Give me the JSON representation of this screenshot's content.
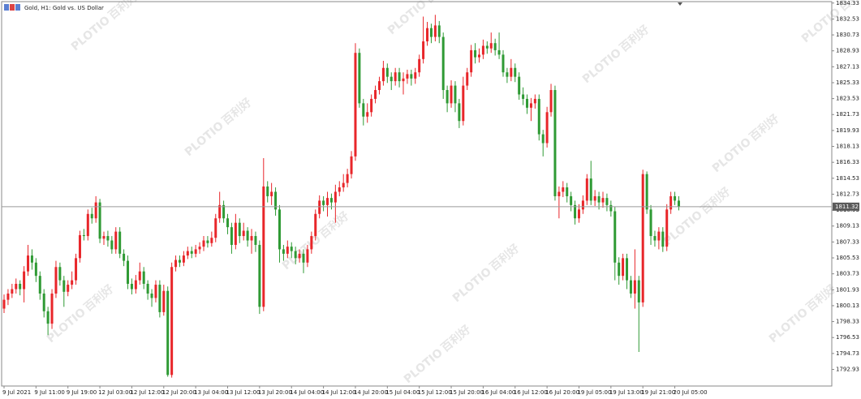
{
  "chart_data": {
    "type": "candlestick",
    "title": "Gold, H1: Gold vs. US Dollar",
    "watermark_brand": "PLOTIO",
    "watermark_name": "百利好",
    "up_color": "#e8262a",
    "down_color": "#2f9a34",
    "last_price": 1811.32,
    "ylim": [
      1791.05,
      1834.4
    ],
    "yticks": [
      1792.93,
      1794.73,
      1796.53,
      1798.33,
      1800.13,
      1801.93,
      1803.73,
      1805.53,
      1807.33,
      1809.13,
      1810.93,
      1812.73,
      1814.53,
      1816.33,
      1818.13,
      1819.93,
      1821.73,
      1823.53,
      1825.33,
      1827.13,
      1828.93,
      1830.73,
      1832.53,
      1834.33
    ],
    "categories": [
      "9 Jul 2021",
      null,
      null,
      null,
      null,
      null,
      null,
      null,
      "9 Jul 11:00",
      null,
      null,
      null,
      null,
      null,
      null,
      null,
      "9 Jul 19:00",
      null,
      null,
      null,
      null,
      null,
      null,
      null,
      "12 Jul 03:00",
      null,
      null,
      null,
      null,
      null,
      null,
      null,
      "12 Jul 12:00",
      null,
      null,
      null,
      null,
      null,
      null,
      null,
      "12 Jul 20:00",
      null,
      null,
      null,
      null,
      null,
      null,
      null,
      "13 Jul 04:00",
      null,
      null,
      null,
      null,
      null,
      null,
      null,
      "13 Jul 12:00",
      null,
      null,
      null,
      null,
      null,
      null,
      null,
      "13 Jul 20:00",
      null,
      null,
      null,
      null,
      null,
      null,
      null,
      "14 Jul 04:00",
      null,
      null,
      null,
      null,
      null,
      null,
      null,
      "14 Jul 12:00",
      null,
      null,
      null,
      null,
      null,
      null,
      null,
      "14 Jul 20:00",
      null,
      null,
      null,
      null,
      null,
      null,
      null,
      "15 Jul 04:00",
      null,
      null,
      null,
      null,
      null,
      null,
      null,
      "15 Jul 12:00",
      null,
      null,
      null,
      null,
      null,
      null,
      null,
      "15 Jul 20:00",
      null,
      null,
      null,
      null,
      null,
      null,
      null,
      "16 Jul 04:00",
      null,
      null,
      null,
      null,
      null,
      null,
      null,
      "16 Jul 12:00",
      null,
      null,
      null,
      null,
      null,
      null,
      null,
      "16 Jul 20:00",
      null,
      null,
      null,
      null,
      null,
      null,
      null,
      "19 Jul 05:00",
      null,
      null,
      null,
      null,
      null,
      null,
      null,
      "19 Jul 13:00",
      null,
      null,
      null,
      null,
      null,
      null,
      null,
      "19 Jul 21:00",
      null,
      null,
      null,
      null,
      null,
      null,
      null,
      "20 Jul 05:00",
      null
    ],
    "open": [
      1799.8,
      1800.8,
      1801.5,
      1802.0,
      1802.6,
      1802.0,
      1804.0,
      1805.8,
      1805.0,
      1803.5,
      1801.5,
      1799.5,
      1798.1,
      1801.5,
      1804.5,
      1803.0,
      1801.7,
      1802.5,
      1803.0,
      1805.5,
      1808.1,
      1808.0,
      1810.5,
      1810.0,
      1811.8,
      1807.7,
      1808.0,
      1807.5,
      1806.5,
      1808.5,
      1806.0,
      1805.2,
      1802.6,
      1802.0,
      1803.0,
      1804.0,
      1802.6,
      1801.5,
      1801.0,
      1802.5,
      1799.4,
      1801.8,
      1792.3,
      1804.5,
      1805.3,
      1805.0,
      1805.8,
      1806.3,
      1806.0,
      1806.5,
      1806.8,
      1807.5,
      1807.2,
      1807.8,
      1810.0,
      1811.5,
      1810.0,
      1809.0,
      1807.0,
      1809.5,
      1808.0,
      1808.6,
      1807.5,
      1808.0,
      1807.0,
      1800.0,
      1813.6,
      1812.5,
      1813.0,
      1811.0,
      1806.5,
      1806.0,
      1806.8,
      1806.3,
      1805.5,
      1806.0,
      1805.0,
      1806.5,
      1808.0,
      1810.5,
      1812.0,
      1811.5,
      1812.3,
      1811.8,
      1813.0,
      1813.5,
      1814.0,
      1815.0,
      1817.0,
      1828.7,
      1823.0,
      1821.5,
      1822.0,
      1823.5,
      1824.5,
      1825.5,
      1827.0,
      1826.0,
      1825.5,
      1826.5,
      1825.5,
      1825.8,
      1826.3,
      1825.8,
      1826.5,
      1828.0,
      1830.0,
      1831.5,
      1830.5,
      1831.8,
      1830.5,
      1824.5,
      1823.0,
      1825.0,
      1823.0,
      1821.0,
      1825.0,
      1826.5,
      1829.0,
      1828.2,
      1828.5,
      1829.5,
      1829.2,
      1829.8,
      1829.0,
      1828.5,
      1826.5,
      1826.0,
      1827.0,
      1826.0,
      1824.0,
      1823.5,
      1822.5,
      1823.0,
      1823.5,
      1819.5,
      1818.5,
      1822.0,
      1824.5,
      1812.5,
      1813.0,
      1813.5,
      1812.5,
      1811.5,
      1810.0,
      1811.0,
      1812.0,
      1814.5,
      1812.0,
      1812.5,
      1811.8,
      1812.3,
      1811.5,
      1810.8,
      1805.0,
      1803.5,
      1805.5,
      1803.0,
      1801.5,
      1803.0,
      1800.5,
      1815.0,
      1811.0,
      1808.0,
      1807.5,
      1808.5,
      1806.8,
      1811.0,
      1812.5,
      1812.0
    ],
    "high": [
      1801.4,
      1802.0,
      1802.6,
      1803.2,
      1803.0,
      1804.6,
      1807.0,
      1806.5,
      1805.5,
      1804.0,
      1802.0,
      1800.0,
      1802.0,
      1805.2,
      1805.0,
      1803.5,
      1803.0,
      1804.0,
      1806.0,
      1808.6,
      1808.8,
      1811.0,
      1811.2,
      1812.5,
      1812.2,
      1808.5,
      1808.6,
      1808.0,
      1809.0,
      1809.0,
      1806.5,
      1805.8,
      1803.2,
      1803.6,
      1805.0,
      1804.5,
      1803.0,
      1802.0,
      1803.0,
      1803.0,
      1802.5,
      1802.3,
      1805.0,
      1805.8,
      1805.8,
      1806.3,
      1806.8,
      1806.8,
      1807.0,
      1807.3,
      1808.0,
      1808.0,
      1808.5,
      1810.5,
      1813.0,
      1812.0,
      1810.5,
      1809.5,
      1810.5,
      1810.0,
      1809.5,
      1809.0,
      1808.8,
      1808.5,
      1807.5,
      1816.8,
      1814.2,
      1814.0,
      1813.5,
      1811.5,
      1807.0,
      1807.5,
      1807.3,
      1806.8,
      1806.5,
      1806.5,
      1807.0,
      1808.5,
      1811.0,
      1812.6,
      1812.5,
      1813.0,
      1812.8,
      1813.8,
      1814.2,
      1815.0,
      1815.6,
      1817.6,
      1829.8,
      1829.2,
      1823.5,
      1823.0,
      1824.0,
      1825.0,
      1826.0,
      1827.8,
      1827.5,
      1826.5,
      1827.0,
      1827.0,
      1826.5,
      1826.8,
      1826.8,
      1827.0,
      1828.5,
      1832.8,
      1832.2,
      1832.0,
      1833.0,
      1832.3,
      1831.0,
      1825.0,
      1825.6,
      1825.5,
      1823.5,
      1826.0,
      1827.0,
      1829.6,
      1829.8,
      1829.2,
      1830.2,
      1830.0,
      1831.0,
      1830.3,
      1831.0,
      1829.0,
      1827.0,
      1828.0,
      1827.5,
      1826.5,
      1824.8,
      1824.0,
      1823.6,
      1824.0,
      1824.0,
      1820.0,
      1822.6,
      1825.2,
      1825.0,
      1813.6,
      1814.2,
      1814.0,
      1813.0,
      1812.0,
      1811.6,
      1812.6,
      1815.0,
      1816.5,
      1813.2,
      1813.0,
      1813.0,
      1812.8,
      1812.0,
      1811.3,
      1805.6,
      1806.0,
      1806.0,
      1803.5,
      1806.5,
      1803.5,
      1815.5,
      1815.3,
      1811.5,
      1808.6,
      1809.0,
      1809.0,
      1811.6,
      1813.0,
      1813.0,
      1812.5
    ],
    "low": [
      1799.3,
      1800.2,
      1801.0,
      1801.5,
      1801.3,
      1800.5,
      1803.5,
      1804.2,
      1802.8,
      1800.8,
      1798.8,
      1796.8,
      1797.5,
      1801.0,
      1802.4,
      1800.0,
      1801.2,
      1802.0,
      1802.5,
      1805.0,
      1807.5,
      1807.5,
      1809.4,
      1809.5,
      1807.2,
      1807.0,
      1806.8,
      1806.0,
      1806.0,
      1805.5,
      1804.6,
      1802.0,
      1801.4,
      1801.5,
      1802.5,
      1802.0,
      1800.8,
      1800.0,
      1800.5,
      1798.8,
      1799.0,
      1792.1,
      1792.0,
      1804.0,
      1804.5,
      1804.6,
      1805.4,
      1805.5,
      1805.6,
      1806.0,
      1806.3,
      1806.7,
      1806.8,
      1807.3,
      1809.5,
      1809.5,
      1808.2,
      1806.0,
      1806.5,
      1807.2,
      1807.5,
      1806.8,
      1806.0,
      1806.2,
      1799.2,
      1799.5,
      1811.8,
      1811.5,
      1810.3,
      1805.0,
      1805.2,
      1805.5,
      1805.5,
      1804.8,
      1805.0,
      1803.8,
      1804.5,
      1806.0,
      1807.5,
      1810.0,
      1810.8,
      1810.2,
      1811.0,
      1809.5,
      1812.5,
      1813.0,
      1813.5,
      1814.5,
      1816.5,
      1822.5,
      1820.5,
      1820.8,
      1821.5,
      1823.0,
      1824.0,
      1825.0,
      1825.3,
      1824.5,
      1825.0,
      1824.8,
      1824.0,
      1825.2,
      1825.0,
      1825.2,
      1826.0,
      1827.5,
      1829.5,
      1829.8,
      1830.0,
      1829.8,
      1823.5,
      1822.0,
      1822.5,
      1822.0,
      1820.2,
      1820.5,
      1824.5,
      1826.0,
      1827.5,
      1827.6,
      1828.0,
      1828.6,
      1828.7,
      1828.4,
      1828.0,
      1826.0,
      1825.3,
      1825.5,
      1825.4,
      1823.4,
      1822.8,
      1821.8,
      1821.0,
      1822.4,
      1818.8,
      1817.0,
      1818.0,
      1821.5,
      1812.0,
      1810.0,
      1812.4,
      1811.8,
      1810.8,
      1809.3,
      1809.5,
      1810.5,
      1811.5,
      1811.5,
      1811.4,
      1811.0,
      1811.2,
      1810.8,
      1810.2,
      1803.0,
      1802.5,
      1803.0,
      1802.0,
      1801.0,
      1799.8,
      1794.9,
      1800.0,
      1810.5,
      1807.0,
      1806.8,
      1806.5,
      1806.2,
      1806.3,
      1810.5,
      1811.5,
      1810.9
    ],
    "close": [
      1800.8,
      1801.5,
      1802.0,
      1802.6,
      1802.0,
      1804.0,
      1805.8,
      1805.0,
      1803.5,
      1801.5,
      1799.5,
      1798.1,
      1801.5,
      1804.5,
      1803.0,
      1801.7,
      1802.5,
      1803.0,
      1805.5,
      1808.1,
      1808.0,
      1810.5,
      1810.0,
      1811.8,
      1807.7,
      1808.0,
      1807.5,
      1806.5,
      1808.5,
      1806.0,
      1805.2,
      1802.6,
      1802.0,
      1803.0,
      1804.0,
      1802.6,
      1801.5,
      1801.0,
      1802.5,
      1799.4,
      1801.8,
      1792.3,
      1804.5,
      1805.3,
      1805.0,
      1805.8,
      1806.3,
      1806.0,
      1806.5,
      1806.8,
      1807.5,
      1807.2,
      1807.8,
      1810.0,
      1811.5,
      1810.0,
      1809.0,
      1807.0,
      1809.5,
      1808.0,
      1808.6,
      1807.5,
      1808.0,
      1807.0,
      1800.0,
      1813.6,
      1812.5,
      1813.0,
      1811.0,
      1806.5,
      1806.0,
      1806.8,
      1806.3,
      1805.5,
      1806.0,
      1805.0,
      1806.5,
      1808.0,
      1810.5,
      1812.0,
      1811.5,
      1812.3,
      1811.8,
      1813.0,
      1813.5,
      1814.0,
      1815.0,
      1817.0,
      1828.7,
      1823.0,
      1821.5,
      1822.0,
      1823.5,
      1824.5,
      1825.5,
      1827.0,
      1826.0,
      1825.5,
      1826.5,
      1825.5,
      1825.8,
      1826.3,
      1825.8,
      1826.5,
      1828.0,
      1830.0,
      1831.5,
      1830.5,
      1831.8,
      1830.5,
      1824.5,
      1823.0,
      1825.0,
      1823.0,
      1821.0,
      1825.0,
      1826.5,
      1829.0,
      1828.2,
      1828.5,
      1829.5,
      1829.2,
      1829.8,
      1829.0,
      1828.5,
      1826.5,
      1826.0,
      1827.0,
      1826.0,
      1824.0,
      1823.5,
      1822.5,
      1823.0,
      1823.5,
      1819.5,
      1818.5,
      1822.0,
      1824.5,
      1812.5,
      1813.0,
      1813.5,
      1812.5,
      1811.5,
      1810.0,
      1811.0,
      1812.0,
      1814.5,
      1812.0,
      1812.5,
      1811.8,
      1812.3,
      1811.5,
      1810.8,
      1805.0,
      1803.5,
      1805.5,
      1803.0,
      1801.5,
      1803.0,
      1800.5,
      1815.0,
      1811.0,
      1808.0,
      1807.5,
      1808.5,
      1806.8,
      1811.0,
      1812.5,
      1812.0,
      1811.3
    ]
  }
}
